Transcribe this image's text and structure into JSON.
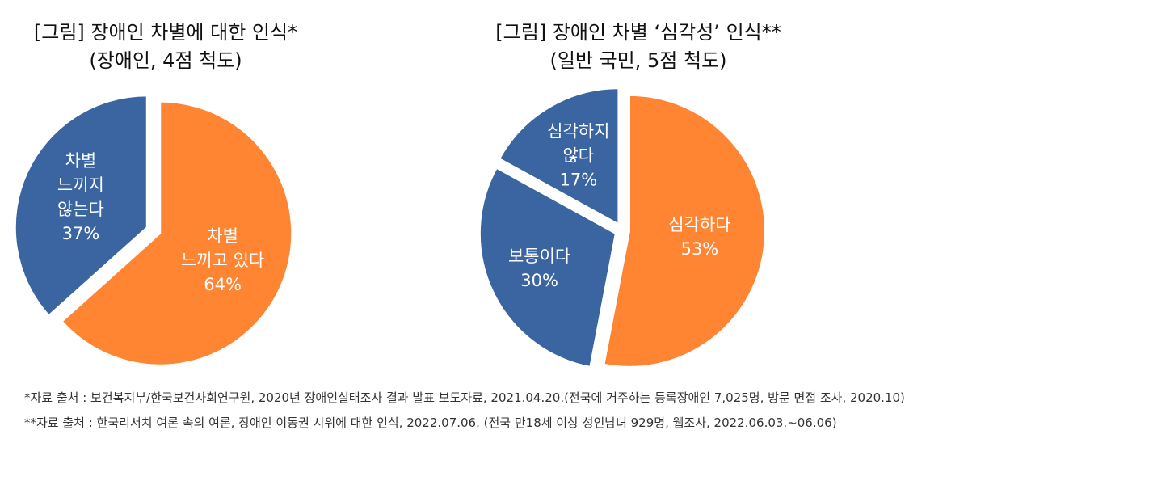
{
  "chart_data": [
    {
      "type": "pie",
      "title": "[그림] 장애인 차별에 대한 인식*",
      "subtitle": "(장애인, 4점 척도)",
      "categories": [
        "차별\n느끼고 있다",
        "차별\n느끼지\n않는다"
      ],
      "values": [
        64,
        37
      ],
      "value_labels": [
        "64%",
        "37%"
      ],
      "colors": [
        "#FF8533",
        "#3A65A1"
      ]
    },
    {
      "type": "pie",
      "title": "[그림] 장애인 차별 ‘심각성’ 인식**",
      "subtitle": "(일반 국민, 5점 척도)",
      "categories": [
        "심각하다",
        "보통이다",
        "심각하지\n않다"
      ],
      "values": [
        53,
        30,
        17
      ],
      "value_labels": [
        "53%",
        "30%",
        "17%"
      ],
      "colors": [
        "#FF8533",
        "#3A65A1",
        "#3A65A1"
      ]
    }
  ],
  "notes": [
    "*자료 출처 : 보건복지부/한국보건사회연구원, 2020년 장애인실태조사 결과 발표 보도자료, 2021.04.20.(전국에 거주하는 등록장애인 7,025명, 방문 면접 조사, 2020.10)",
    "**자료 출처 : 한국리서치 여론 속의 여론, 장애인 이동권 시위에 대한 인식, 2022.07.06. (전국 만18세 이상 성인남녀 929명, 웹조사, 2022.06.03.~06.06)"
  ]
}
